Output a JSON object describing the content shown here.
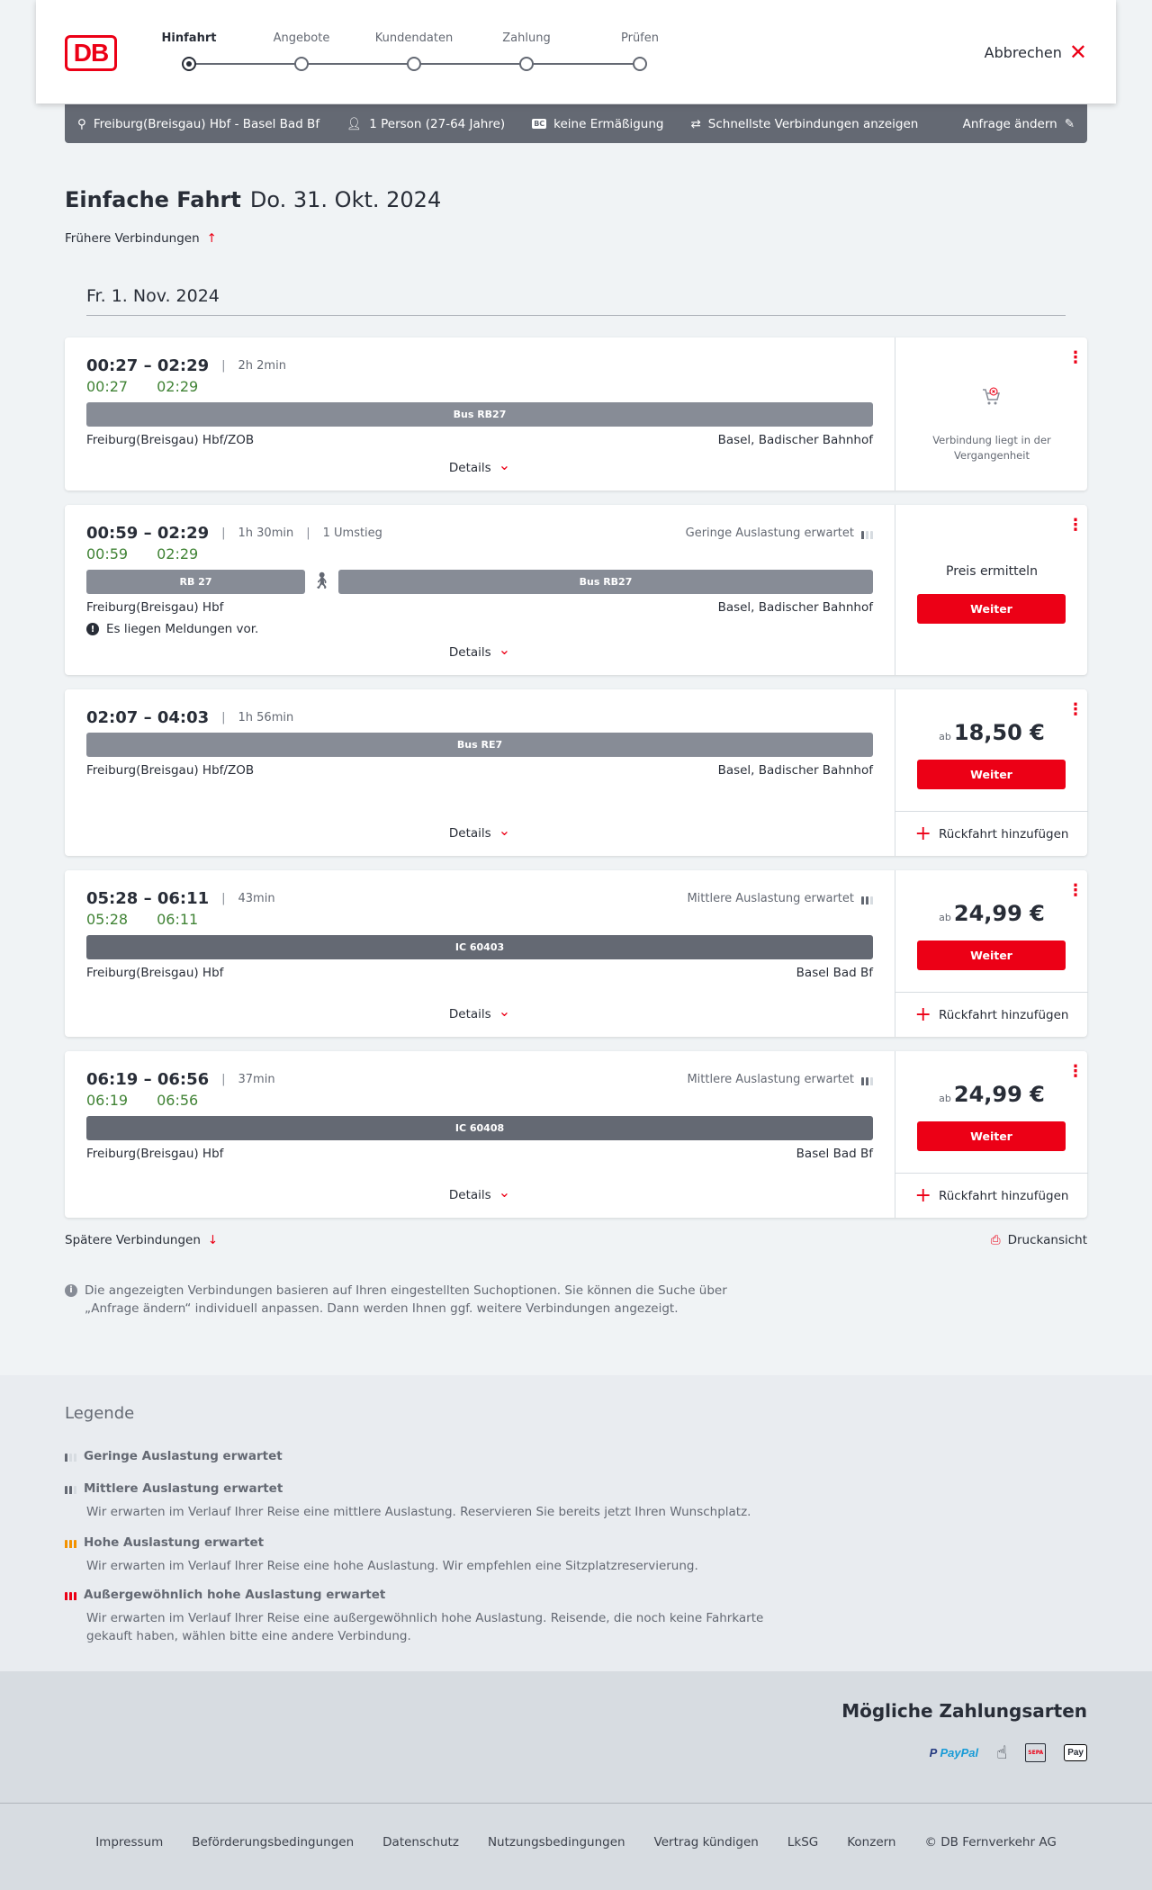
{
  "header": {
    "logo": "DB",
    "steps": [
      {
        "label": "Hinfahrt",
        "active": true
      },
      {
        "label": "Angebote",
        "active": false
      },
      {
        "label": "Kundendaten",
        "active": false
      },
      {
        "label": "Zahlung",
        "active": false
      },
      {
        "label": "Prüfen",
        "active": false
      }
    ],
    "cancel_label": "Abbrechen"
  },
  "query": {
    "route": "Freiburg(Breisgau) Hbf - Basel Bad Bf",
    "passengers": "1 Person (27-64 Jahre)",
    "discount": "keine Ermäßigung",
    "fastest": "Schnellste Verbindungen anzeigen",
    "edit": "Anfrage ändern"
  },
  "page": {
    "title_bold": "Einfache Fahrt",
    "title_date": "Do. 31. Okt. 2024",
    "earlier": "Frühere Verbindungen",
    "day": "Fr. 1. Nov. 2024",
    "later": "Spätere Verbindungen",
    "print": "Druckansicht",
    "info": "Die angezeigten Verbindungen basieren auf Ihren eingestellten Suchoptionen. Sie können die Suche über „Anfrage ändern“ individuell anpassen. Dann werden Ihnen ggf. weitere Verbindungen angezeigt."
  },
  "labels": {
    "details": "Details",
    "weiter": "Weiter",
    "back": "Rückfahrt hinzufügen",
    "ab": "ab"
  },
  "connections": [
    {
      "time": "00:27 – 02:29",
      "duration": "2h 2min",
      "transfers": "",
      "load": "",
      "rt_dep": "00:27",
      "rt_arr": "02:29",
      "legs": [
        {
          "name": "Bus RB27",
          "type": "bus"
        }
      ],
      "from": "Freiburg(Breisgau) Hbf/ZOB",
      "to": "Basel, Badischer Bahnhof",
      "message": "",
      "status": "past",
      "past_text": "Verbindung liegt in der Vergangenheit"
    },
    {
      "time": "00:59 – 02:29",
      "duration": "1h 30min",
      "transfers": "1 Umstieg",
      "load": "Geringe Auslastung erwartet",
      "load_level": 1,
      "rt_dep": "00:59",
      "rt_arr": "02:29",
      "legs": [
        {
          "name": "RB 27",
          "type": "bus"
        },
        {
          "name": "walk"
        },
        {
          "name": "Bus RB27",
          "type": "bus"
        }
      ],
      "from": "Freiburg(Breisgau) Hbf",
      "to": "Basel, Badischer Bahnhof",
      "message": "Es liegen Meldungen vor.",
      "status": "determine",
      "status_text": "Preis ermitteln"
    },
    {
      "time": "02:07 – 04:03",
      "duration": "1h 56min",
      "transfers": "",
      "load": "",
      "rt_dep": "",
      "rt_arr": "",
      "legs": [
        {
          "name": "Bus RE7",
          "type": "bus"
        }
      ],
      "from": "Freiburg(Breisgau) Hbf/ZOB",
      "to": "Basel, Badischer Bahnhof",
      "message": "",
      "status": "price",
      "price": "18,50 €"
    },
    {
      "time": "05:28 – 06:11",
      "duration": "43min",
      "transfers": "",
      "load": "Mittlere Auslastung erwartet",
      "load_level": 2,
      "rt_dep": "05:28",
      "rt_arr": "06:11",
      "legs": [
        {
          "name": "IC 60403",
          "type": "ic"
        }
      ],
      "from": "Freiburg(Breisgau) Hbf",
      "to": "Basel Bad Bf",
      "message": "",
      "status": "price",
      "price": "24,99 €"
    },
    {
      "time": "06:19 – 06:56",
      "duration": "37min",
      "transfers": "",
      "load": "Mittlere Auslastung erwartet",
      "load_level": 2,
      "rt_dep": "06:19",
      "rt_arr": "06:56",
      "legs": [
        {
          "name": "IC 60408",
          "type": "ic"
        }
      ],
      "from": "Freiburg(Breisgau) Hbf",
      "to": "Basel Bad Bf",
      "message": "",
      "status": "price",
      "price": "24,99 €"
    }
  ],
  "legend": {
    "title": "Legende",
    "items": [
      {
        "title": "Geringe Auslastung erwartet",
        "desc": "",
        "level": 1,
        "color": "#646973"
      },
      {
        "title": "Mittlere Auslastung erwartet",
        "desc": "Wir erwarten im Verlauf Ihrer Reise eine mittlere Auslastung. Reservieren Sie bereits jetzt Ihren Wunschplatz.",
        "level": 2,
        "color": "#646973"
      },
      {
        "title": "Hohe Auslastung erwartet",
        "desc": "Wir erwarten im Verlauf Ihrer Reise eine hohe Auslastung. Wir empfehlen eine Sitzplatzreservierung.",
        "level": 3,
        "color": "#f39200"
      },
      {
        "title": "Außergewöhnlich hohe Auslastung erwartet",
        "desc": "Wir erwarten im Verlauf Ihrer Reise eine außergewöhnlich hohe Auslastung. Reisende, die noch keine Fahrkarte gekauft haben, wählen bitte eine andere Verbindung.",
        "level": 4,
        "color": "#ec0016"
      }
    ]
  },
  "payment": {
    "title": "Mögliche Zahlungsarten",
    "methods": [
      "PayPal",
      "credit-card-icon",
      "SEPA",
      "Apple Pay"
    ],
    "paypal_a": "Pay",
    "paypal_b": "Pal",
    "applepay": "Pay"
  },
  "footer_links": [
    "Impressum",
    "Beförderungsbedingungen",
    "Datenschutz",
    "Nutzungsbedingungen",
    "Vertrag kündigen",
    "LkSG",
    "Konzern",
    "© DB Fernverkehr AG"
  ],
  "colors": {
    "accent": "#ec0016",
    "realtime": "#408335",
    "bar": "#646973",
    "leg": "#878c96"
  }
}
